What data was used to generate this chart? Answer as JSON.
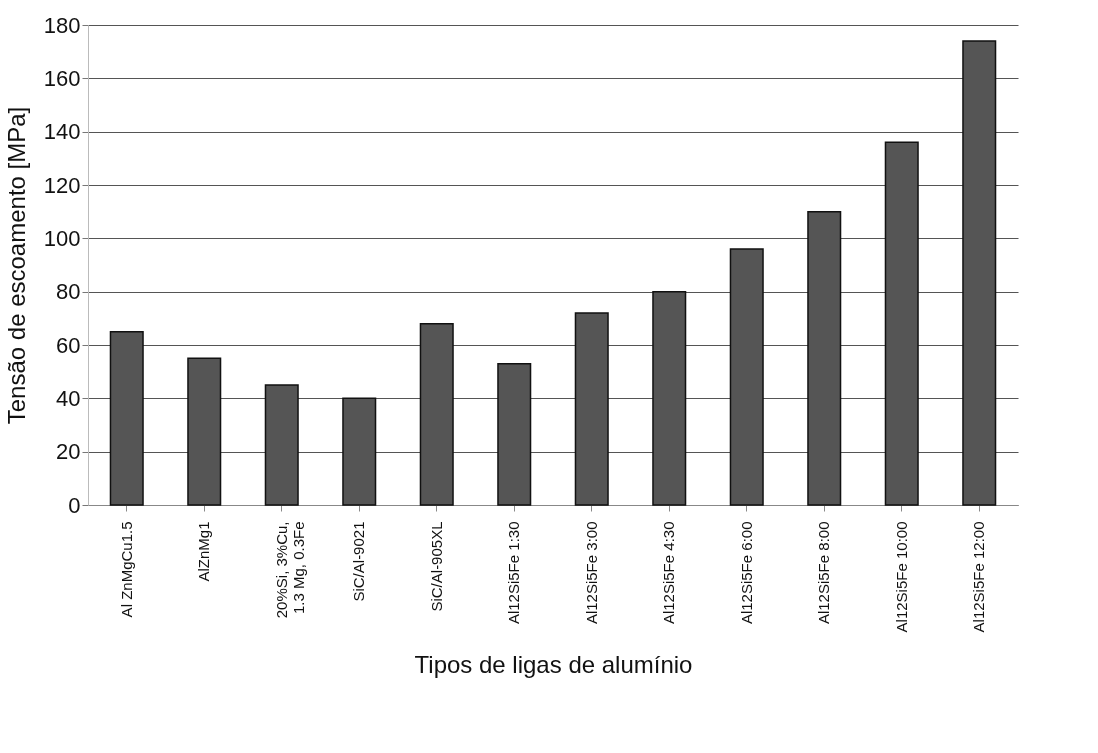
{
  "chart_data": {
    "type": "bar",
    "xlabel": "Tipos de ligas de alumínio",
    "ylabel": "Tensão de escoamento [MPa]",
    "categories": [
      "Al ZnMgCu1.5",
      "AlZnMg1",
      "20%Si, 3%Cu, 1.3 Mg, 0.3Fe",
      "SiC/Al-9021",
      "SiC/Al-905XL",
      "Al12Si5Fe 1:30",
      "Al12Si5Fe 3:00",
      "Al12Si5Fe 4:30",
      "Al12Si5Fe 6:00",
      "Al12Si5Fe 8:00",
      "Al12Si5Fe 10:00",
      "Al12Si5Fe 12:00"
    ],
    "values": [
      65,
      55,
      45,
      40,
      68,
      53,
      72,
      80,
      96,
      110,
      136,
      174
    ],
    "color": "#555555",
    "ylim": [
      0,
      180
    ],
    "yticks": [
      0,
      20,
      40,
      60,
      80,
      100,
      120,
      140,
      160,
      180
    ],
    "grid": "y"
  }
}
